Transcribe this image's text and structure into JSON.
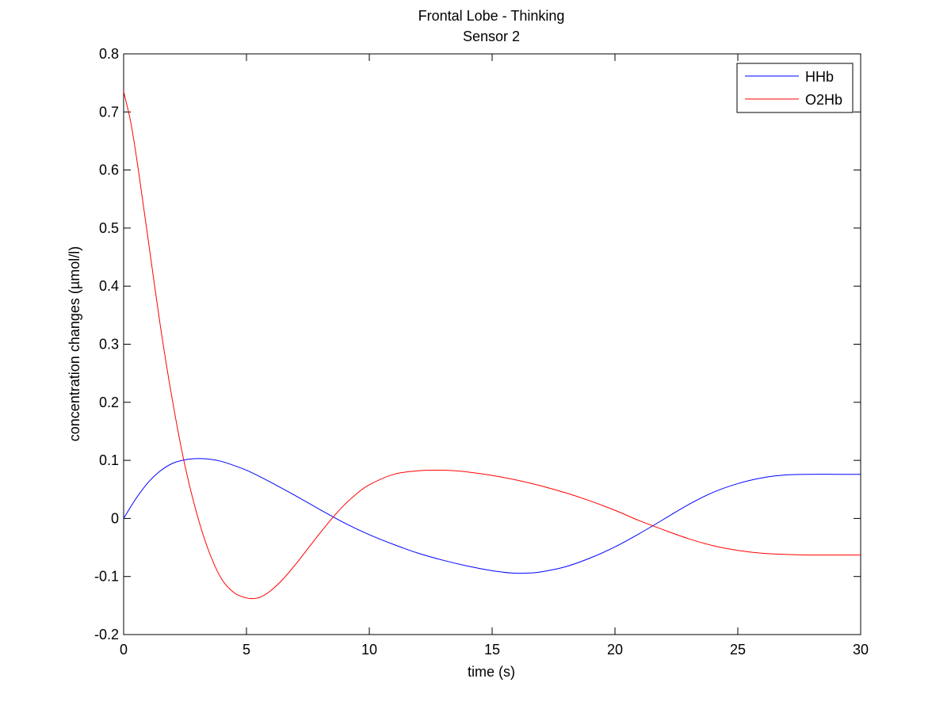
{
  "chart_data": {
    "type": "line",
    "title": "Frontal Lobe - Thinking",
    "subtitle": "Sensor 2",
    "xlabel": "time (s)",
    "ylabel": "concentration changes (µmol/l)",
    "xlim": [
      0,
      30
    ],
    "ylim": [
      -0.2,
      0.8
    ],
    "xticks": [
      0,
      5,
      10,
      15,
      20,
      25,
      30
    ],
    "yticks": [
      -0.2,
      -0.1,
      0,
      0.1,
      0.2,
      0.3,
      0.4,
      0.5,
      0.6,
      0.7,
      0.8
    ],
    "xtick_labels": [
      "0",
      "5",
      "10",
      "15",
      "20",
      "25",
      "30"
    ],
    "ytick_labels": [
      "-0.2",
      "-0.1",
      "0",
      "0.1",
      "0.2",
      "0.3",
      "0.4",
      "0.5",
      "0.6",
      "0.7",
      "0.8"
    ],
    "grid": false,
    "legend_position": "top-right",
    "series": [
      {
        "name": "HHb",
        "color": "#0000ff",
        "x": [
          0,
          0.5,
          1,
          1.5,
          2,
          2.5,
          3,
          3.5,
          4,
          4.5,
          5,
          5.5,
          6,
          7,
          8,
          9,
          10,
          11,
          12,
          13,
          14,
          15,
          15.8,
          16.5,
          17,
          18,
          19,
          20,
          21,
          22,
          23,
          24,
          25,
          26,
          27,
          28,
          29,
          30
        ],
        "y": [
          0,
          0.034,
          0.062,
          0.082,
          0.095,
          0.101,
          0.103,
          0.102,
          0.098,
          0.091,
          0.083,
          0.073,
          0.062,
          0.039,
          0.015,
          -0.008,
          -0.028,
          -0.045,
          -0.06,
          -0.072,
          -0.082,
          -0.09,
          -0.094,
          -0.094,
          -0.092,
          -0.083,
          -0.068,
          -0.049,
          -0.026,
          -0.001,
          0.024,
          0.045,
          0.06,
          0.07,
          0.075,
          0.076,
          0.076,
          0.076
        ]
      },
      {
        "name": "O2Hb",
        "color": "#ff0000",
        "x": [
          0,
          0.3,
          0.6,
          1,
          1.5,
          2,
          2.5,
          3,
          3.5,
          4,
          4.5,
          5,
          5.3,
          5.6,
          6,
          6.5,
          7,
          7.5,
          8,
          8.5,
          9,
          9.5,
          10,
          11,
          12,
          12.8,
          13.5,
          14,
          15,
          16,
          17,
          18,
          19,
          20,
          21,
          22,
          23,
          24,
          25,
          26,
          27,
          28,
          29,
          30
        ],
        "y": [
          0.735,
          0.68,
          0.6,
          0.48,
          0.33,
          0.2,
          0.09,
          0.005,
          -0.06,
          -0.105,
          -0.128,
          -0.137,
          -0.138,
          -0.135,
          -0.124,
          -0.104,
          -0.079,
          -0.052,
          -0.025,
          0.001,
          0.024,
          0.043,
          0.058,
          0.076,
          0.082,
          0.083,
          0.082,
          0.08,
          0.074,
          0.066,
          0.056,
          0.044,
          0.03,
          0.014,
          -0.004,
          -0.02,
          -0.035,
          -0.047,
          -0.055,
          -0.06,
          -0.062,
          -0.063,
          -0.063,
          -0.063
        ]
      }
    ]
  }
}
